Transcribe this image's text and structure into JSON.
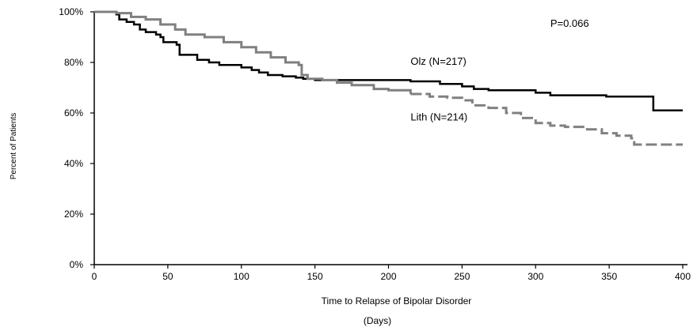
{
  "chart_data": {
    "type": "line",
    "step": true,
    "xlabel": "Time to Relapse of Bipolar Disorder",
    "xlabel_unit": "(Days)",
    "ylabel": "Percent of Patients",
    "xlim": [
      0,
      400
    ],
    "ylim": [
      0,
      100
    ],
    "x_ticks": [
      0,
      50,
      100,
      150,
      200,
      250,
      300,
      350,
      400
    ],
    "y_ticks": [
      0,
      20,
      40,
      60,
      80,
      100
    ],
    "x_tick_labels": [
      "0",
      "50",
      "100",
      "150",
      "200",
      "250",
      "300",
      "350",
      "400"
    ],
    "y_tick_labels": [
      "0%",
      "20%",
      "40%",
      "60%",
      "80%",
      "100%"
    ],
    "grid": false,
    "annotation": "P=0.066",
    "series": [
      {
        "name": "Olz (N=217)",
        "color": "#000000",
        "style": "solid",
        "points": [
          [
            0,
            100
          ],
          [
            15,
            99
          ],
          [
            17,
            97
          ],
          [
            22,
            96
          ],
          [
            27,
            95
          ],
          [
            31,
            93
          ],
          [
            35,
            92
          ],
          [
            42,
            91
          ],
          [
            45,
            90
          ],
          [
            47,
            88
          ],
          [
            56,
            87
          ],
          [
            58,
            83
          ],
          [
            66,
            83
          ],
          [
            70,
            81
          ],
          [
            78,
            80
          ],
          [
            85,
            79
          ],
          [
            100,
            78
          ],
          [
            107,
            77
          ],
          [
            112,
            76
          ],
          [
            118,
            75
          ],
          [
            128,
            74.5
          ],
          [
            137,
            74
          ],
          [
            142,
            73.5
          ],
          [
            150,
            73
          ],
          [
            200,
            73
          ],
          [
            215,
            72.5
          ],
          [
            235,
            71.5
          ],
          [
            250,
            70.5
          ],
          [
            258,
            69.5
          ],
          [
            268,
            69
          ],
          [
            290,
            69
          ],
          [
            300,
            68
          ],
          [
            310,
            67
          ],
          [
            340,
            67
          ],
          [
            348,
            66.5
          ],
          [
            380,
            66.5
          ],
          [
            380,
            61
          ],
          [
            400,
            61
          ]
        ]
      },
      {
        "name": "Lith (N=214)",
        "color": "#808080",
        "style": "solid-then-dashed",
        "dash_from": 215,
        "points": [
          [
            0,
            100
          ],
          [
            5,
            100
          ],
          [
            15,
            99.5
          ],
          [
            25,
            98
          ],
          [
            35,
            97
          ],
          [
            45,
            95
          ],
          [
            55,
            93
          ],
          [
            62,
            91
          ],
          [
            75,
            90
          ],
          [
            88,
            88
          ],
          [
            100,
            86
          ],
          [
            110,
            84
          ],
          [
            120,
            82
          ],
          [
            130,
            80
          ],
          [
            139,
            79
          ],
          [
            141,
            75
          ],
          [
            145,
            73.5
          ],
          [
            155,
            73
          ],
          [
            165,
            72
          ],
          [
            175,
            71
          ],
          [
            190,
            69.5
          ],
          [
            200,
            69
          ],
          [
            215,
            67.5
          ],
          [
            228,
            66.5
          ],
          [
            240,
            66
          ],
          [
            250,
            65
          ],
          [
            257,
            63
          ],
          [
            268,
            62
          ],
          [
            280,
            60
          ],
          [
            290,
            58
          ],
          [
            300,
            56
          ],
          [
            310,
            55
          ],
          [
            320,
            54.5
          ],
          [
            335,
            53.5
          ],
          [
            345,
            52
          ],
          [
            355,
            51
          ],
          [
            365,
            50
          ],
          [
            367,
            47.5
          ],
          [
            400,
            47.5
          ]
        ]
      }
    ],
    "labels": [
      {
        "series": "Olz (N=217)",
        "text": "Olz (N=217)",
        "x": 215,
        "y": 79
      },
      {
        "series": "Lith (N=214)",
        "text": "Lith (N=214)",
        "x": 215,
        "y": 57
      }
    ],
    "annotation_pos": {
      "x": 310,
      "y": 94
    }
  }
}
